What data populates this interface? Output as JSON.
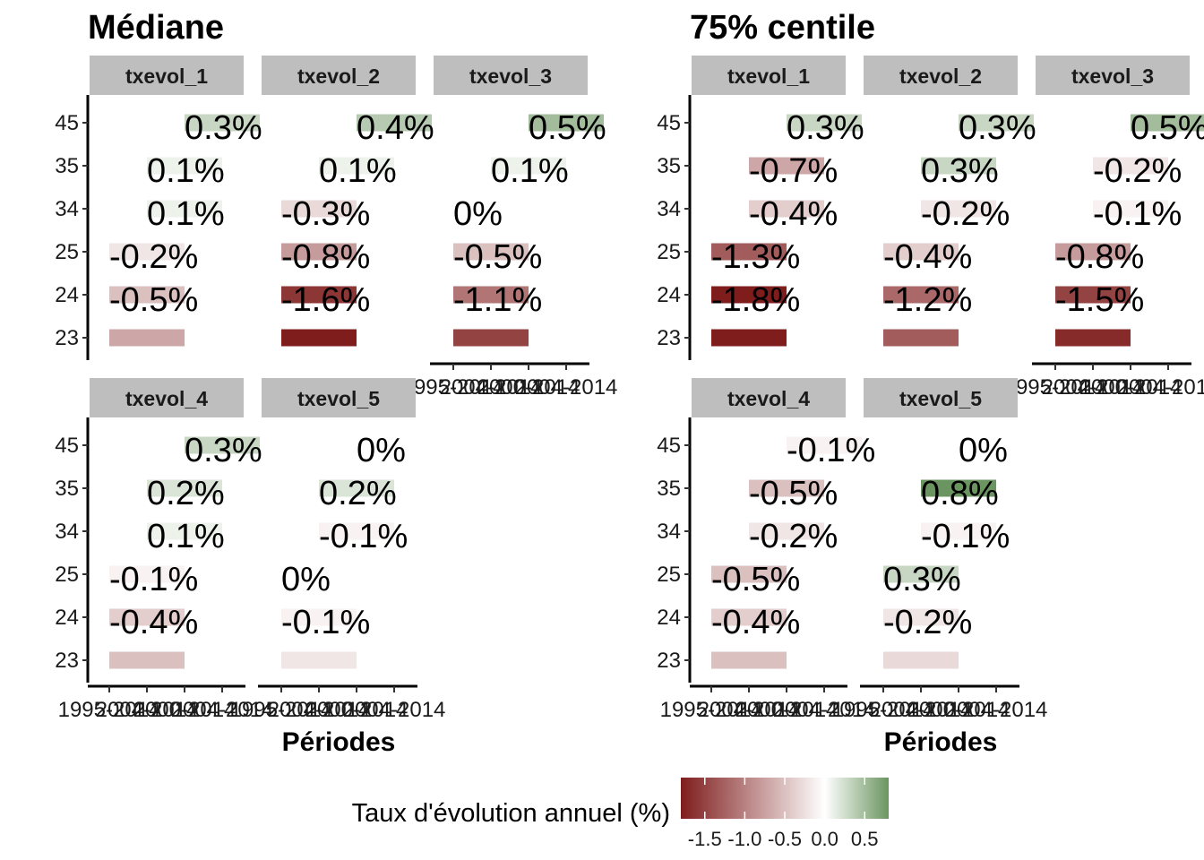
{
  "colors": {
    "negative": "#7f1d1d",
    "zero": "#ffffff",
    "positive": "#6b9560",
    "strip": "#bebebe"
  },
  "chart_data": {
    "type": "heatmap",
    "x_ticks": [
      "1995-2014",
      "2004-2014",
      "2000-2014",
      "2004-2014"
    ],
    "y_ticks": [
      "23",
      "24",
      "25",
      "34",
      "35",
      "45"
    ],
    "xlabel": "Périodes",
    "color_scale": {
      "min": -1.8,
      "max": 0.8
    },
    "legend": {
      "title": "Taux d'évolution annuel (%)",
      "ticks": [
        "-1.5",
        "-1.0",
        "-0.5",
        "0.0",
        "0.5"
      ],
      "tick_values": [
        -1.5,
        -1.0,
        -0.5,
        0.0,
        0.5
      ],
      "range": [
        -1.8,
        0.8
      ],
      "placement": "bottom"
    },
    "groups": [
      {
        "title": "Médiane",
        "facets": [
          {
            "name": "txevol_1",
            "cells": [
              {
                "y": "45",
                "xi": 2,
                "value": 0.3,
                "label": "0.3%"
              },
              {
                "y": "35",
                "xi": 1,
                "value": 0.1,
                "label": "0.1%"
              },
              {
                "y": "34",
                "xi": 1,
                "value": 0.1,
                "label": "0.1%"
              },
              {
                "y": "25",
                "xi": 0,
                "value": -0.2,
                "label": "-0.2%"
              },
              {
                "y": "24",
                "xi": 0,
                "value": -0.5,
                "label": "-0.5%"
              },
              {
                "y": "23",
                "xi": 0,
                "value": -0.7,
                "label": ""
              }
            ]
          },
          {
            "name": "txevol_2",
            "cells": [
              {
                "y": "45",
                "xi": 2,
                "value": 0.4,
                "label": "0.4%"
              },
              {
                "y": "35",
                "xi": 1,
                "value": 0.1,
                "label": "0.1%"
              },
              {
                "y": "34",
                "xi": 0,
                "value": -0.3,
                "label": "-0.3%"
              },
              {
                "y": "25",
                "xi": 0,
                "value": -0.8,
                "label": "-0.8%"
              },
              {
                "y": "24",
                "xi": 0,
                "value": -1.6,
                "label": "-1.6%"
              },
              {
                "y": "23",
                "xi": 0,
                "value": -2.0,
                "label": ""
              }
            ]
          },
          {
            "name": "txevol_3",
            "cells": [
              {
                "y": "45",
                "xi": 2,
                "value": 0.5,
                "label": "0.5%"
              },
              {
                "y": "35",
                "xi": 1,
                "value": 0.1,
                "label": "0.1%"
              },
              {
                "y": "34",
                "xi": 0,
                "value": 0,
                "label": "0%"
              },
              {
                "y": "25",
                "xi": 0,
                "value": -0.5,
                "label": "-0.5%"
              },
              {
                "y": "24",
                "xi": 0,
                "value": -1.1,
                "label": "-1.1%"
              },
              {
                "y": "23",
                "xi": 0,
                "value": -1.5,
                "label": ""
              }
            ]
          },
          {
            "name": "txevol_4",
            "cells": [
              {
                "y": "45",
                "xi": 2,
                "value": 0.3,
                "label": "0.3%"
              },
              {
                "y": "35",
                "xi": 1,
                "value": 0.2,
                "label": "0.2%"
              },
              {
                "y": "34",
                "xi": 1,
                "value": 0.1,
                "label": "0.1%"
              },
              {
                "y": "25",
                "xi": 0,
                "value": -0.1,
                "label": "-0.1%"
              },
              {
                "y": "24",
                "xi": 0,
                "value": -0.4,
                "label": "-0.4%"
              },
              {
                "y": "23",
                "xi": 0,
                "value": -0.5,
                "label": ""
              }
            ]
          },
          {
            "name": "txevol_5",
            "cells": [
              {
                "y": "45",
                "xi": 2,
                "value": 0,
                "label": "0%"
              },
              {
                "y": "35",
                "xi": 1,
                "value": 0.2,
                "label": "0.2%"
              },
              {
                "y": "34",
                "xi": 1,
                "value": -0.1,
                "label": "-0.1%"
              },
              {
                "y": "25",
                "xi": 0,
                "value": 0,
                "label": "0%"
              },
              {
                "y": "24",
                "xi": 0,
                "value": -0.1,
                "label": "-0.1%"
              },
              {
                "y": "23",
                "xi": 0,
                "value": -0.2,
                "label": ""
              }
            ]
          }
        ]
      },
      {
        "title": "75% centile",
        "facets": [
          {
            "name": "txevol_1",
            "cells": [
              {
                "y": "45",
                "xi": 2,
                "value": 0.3,
                "label": "0.3%"
              },
              {
                "y": "35",
                "xi": 1,
                "value": -0.7,
                "label": "-0.7%"
              },
              {
                "y": "34",
                "xi": 1,
                "value": -0.4,
                "label": "-0.4%"
              },
              {
                "y": "25",
                "xi": 0,
                "value": -1.3,
                "label": "-1.3%"
              },
              {
                "y": "24",
                "xi": 0,
                "value": -1.8,
                "label": "-1.8%"
              },
              {
                "y": "23",
                "xi": 0,
                "value": -2.0,
                "label": ""
              }
            ]
          },
          {
            "name": "txevol_2",
            "cells": [
              {
                "y": "45",
                "xi": 2,
                "value": 0.3,
                "label": "0.3%"
              },
              {
                "y": "35",
                "xi": 1,
                "value": 0.3,
                "label": "0.3%"
              },
              {
                "y": "34",
                "xi": 1,
                "value": -0.2,
                "label": "-0.2%"
              },
              {
                "y": "25",
                "xi": 0,
                "value": -0.4,
                "label": "-0.4%"
              },
              {
                "y": "24",
                "xi": 0,
                "value": -1.2,
                "label": "-1.2%"
              },
              {
                "y": "23",
                "xi": 0,
                "value": -1.3,
                "label": ""
              }
            ]
          },
          {
            "name": "txevol_3",
            "cells": [
              {
                "y": "45",
                "xi": 2,
                "value": 0.5,
                "label": "0.5%"
              },
              {
                "y": "35",
                "xi": 1,
                "value": -0.2,
                "label": "-0.2%"
              },
              {
                "y": "34",
                "xi": 1,
                "value": -0.1,
                "label": "-0.1%"
              },
              {
                "y": "25",
                "xi": 0,
                "value": -0.8,
                "label": "-0.8%"
              },
              {
                "y": "24",
                "xi": 0,
                "value": -1.5,
                "label": "-1.5%"
              },
              {
                "y": "23",
                "xi": 0,
                "value": -1.7,
                "label": ""
              }
            ]
          },
          {
            "name": "txevol_4",
            "cells": [
              {
                "y": "45",
                "xi": 2,
                "value": -0.1,
                "label": "-0.1%"
              },
              {
                "y": "35",
                "xi": 1,
                "value": -0.5,
                "label": "-0.5%"
              },
              {
                "y": "34",
                "xi": 1,
                "value": -0.2,
                "label": "-0.2%"
              },
              {
                "y": "25",
                "xi": 0,
                "value": -0.5,
                "label": "-0.5%"
              },
              {
                "y": "24",
                "xi": 0,
                "value": -0.4,
                "label": "-0.4%"
              },
              {
                "y": "23",
                "xi": 0,
                "value": -0.5,
                "label": ""
              }
            ]
          },
          {
            "name": "txevol_5",
            "cells": [
              {
                "y": "45",
                "xi": 2,
                "value": 0,
                "label": "0%"
              },
              {
                "y": "35",
                "xi": 1,
                "value": 0.8,
                "label": "0.8%"
              },
              {
                "y": "34",
                "xi": 1,
                "value": -0.1,
                "label": "-0.1%"
              },
              {
                "y": "25",
                "xi": 0,
                "value": 0.3,
                "label": "0.3%"
              },
              {
                "y": "24",
                "xi": 0,
                "value": -0.2,
                "label": "-0.2%"
              },
              {
                "y": "23",
                "xi": 0,
                "value": -0.3,
                "label": ""
              }
            ]
          }
        ]
      }
    ]
  }
}
